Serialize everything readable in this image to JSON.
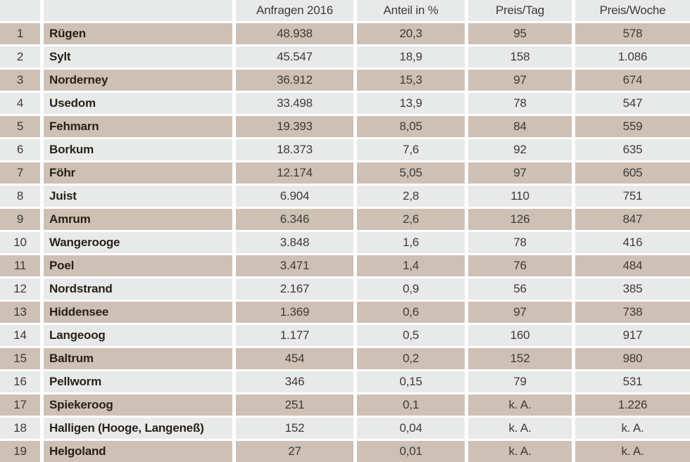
{
  "colors": {
    "row_highlight": "#cec0b4",
    "row_alt": "#e8eae9",
    "gap": "#ffffff",
    "text_numbers": "#3d3a36",
    "text_names": "#282118"
  },
  "chart_data": {
    "type": "table",
    "title": "",
    "columns": [
      "",
      "",
      "Anfragen 2016",
      "Anteil in %",
      "Preis/Tag",
      "Preis/Woche"
    ],
    "rows": [
      {
        "rank": "1",
        "name": "Rügen",
        "anfragen_2016": "48.938",
        "anteil_prozent": "20,3",
        "preis_tag": "95",
        "preis_woche": "578"
      },
      {
        "rank": "2",
        "name": "Sylt",
        "anfragen_2016": "45.547",
        "anteil_prozent": "18,9",
        "preis_tag": "158",
        "preis_woche": "1.086"
      },
      {
        "rank": "3",
        "name": "Norderney",
        "anfragen_2016": "36.912",
        "anteil_prozent": "15,3",
        "preis_tag": "97",
        "preis_woche": "674"
      },
      {
        "rank": "4",
        "name": "Usedom",
        "anfragen_2016": "33.498",
        "anteil_prozent": "13,9",
        "preis_tag": "78",
        "preis_woche": "547"
      },
      {
        "rank": "5",
        "name": "Fehmarn",
        "anfragen_2016": "19.393",
        "anteil_prozent": "8,05",
        "preis_tag": "84",
        "preis_woche": "559"
      },
      {
        "rank": "6",
        "name": "Borkum",
        "anfragen_2016": "18.373",
        "anteil_prozent": "7,6",
        "preis_tag": "92",
        "preis_woche": "635"
      },
      {
        "rank": "7",
        "name": "Föhr",
        "anfragen_2016": "12.174",
        "anteil_prozent": "5,05",
        "preis_tag": "97",
        "preis_woche": "605"
      },
      {
        "rank": "8",
        "name": "Juist",
        "anfragen_2016": "6.904",
        "anteil_prozent": "2,8",
        "preis_tag": "110",
        "preis_woche": "751"
      },
      {
        "rank": "9",
        "name": "Amrum",
        "anfragen_2016": "6.346",
        "anteil_prozent": "2,6",
        "preis_tag": "126",
        "preis_woche": "847"
      },
      {
        "rank": "10",
        "name": "Wangerooge",
        "anfragen_2016": "3.848",
        "anteil_prozent": "1,6",
        "preis_tag": "78",
        "preis_woche": "416"
      },
      {
        "rank": "11",
        "name": "Poel",
        "anfragen_2016": "3.471",
        "anteil_prozent": "1,4",
        "preis_tag": "76",
        "preis_woche": "484"
      },
      {
        "rank": "12",
        "name": "Nordstrand",
        "anfragen_2016": "2.167",
        "anteil_prozent": "0,9",
        "preis_tag": "56",
        "preis_woche": "385"
      },
      {
        "rank": "13",
        "name": "Hiddensee",
        "anfragen_2016": "1.369",
        "anteil_prozent": "0,6",
        "preis_tag": "97",
        "preis_woche": "738"
      },
      {
        "rank": "14",
        "name": "Langeoog",
        "anfragen_2016": "1.177",
        "anteil_prozent": "0,5",
        "preis_tag": "160",
        "preis_woche": "917"
      },
      {
        "rank": "15",
        "name": "Baltrum",
        "anfragen_2016": "454",
        "anteil_prozent": "0,2",
        "preis_tag": "152",
        "preis_woche": "980"
      },
      {
        "rank": "16",
        "name": "Pellworm",
        "anfragen_2016": "346",
        "anteil_prozent": "0,15",
        "preis_tag": "79",
        "preis_woche": "531"
      },
      {
        "rank": "17",
        "name": "Spiekeroog",
        "anfragen_2016": "251",
        "anteil_prozent": "0,1",
        "preis_tag": "k. A.",
        "preis_woche": "1.226"
      },
      {
        "rank": "18",
        "name": "Halligen (Hooge, Langeneß)",
        "anfragen_2016": "152",
        "anteil_prozent": "0,04",
        "preis_tag": "k. A.",
        "preis_woche": "k. A."
      },
      {
        "rank": "19",
        "name": "Helgoland",
        "anfragen_2016": "27",
        "anteil_prozent": "0,01",
        "preis_tag": "k. A.",
        "preis_woche": "k. A."
      }
    ]
  }
}
